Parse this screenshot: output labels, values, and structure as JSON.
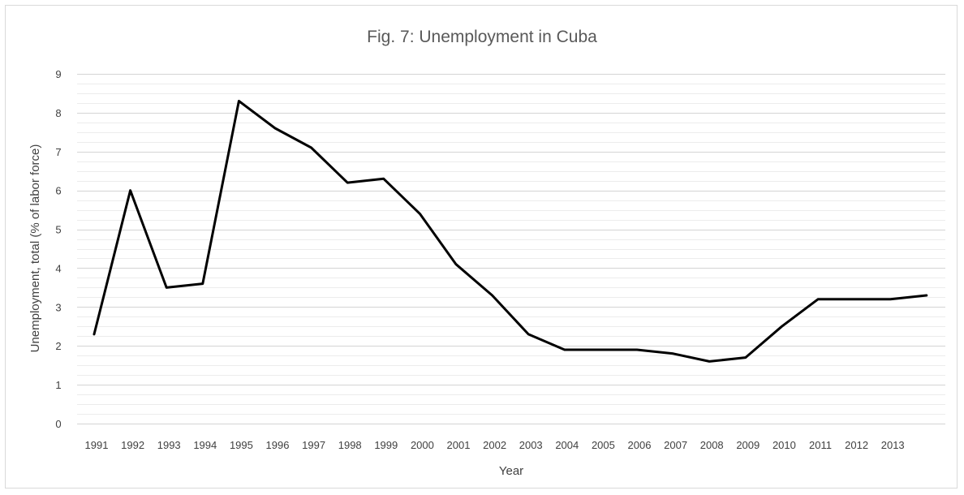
{
  "chart_data": {
    "type": "line",
    "title": "Fig. 7: Unemployment  in Cuba",
    "xlabel": "Year",
    "ylabel": "Unemployment, total (% of labor force)",
    "ylim": [
      0,
      9
    ],
    "yticks": [
      "0",
      "1",
      "2",
      "3",
      "4",
      "5",
      "6",
      "7",
      "8",
      "9"
    ],
    "x_tick_labels": [
      "1991",
      "1992",
      "1993",
      "1994",
      "1995",
      "1996",
      "1997",
      "1998",
      "1999",
      "2000",
      "2001",
      "2002",
      "2003",
      "2004",
      "2005",
      "2006",
      "2007",
      "2008",
      "2009",
      "2010",
      "2011",
      "2012",
      "2013"
    ],
    "grid": true,
    "legend": "none",
    "series": [
      {
        "color": "#000000",
        "x": [
          1991,
          1992,
          1993,
          1994,
          1995,
          1996,
          1997,
          1998,
          1999,
          2000,
          2001,
          2002,
          2003,
          2004,
          2005,
          2006,
          2007,
          2008,
          2009,
          2010,
          2011,
          2012,
          2013,
          2014
        ],
        "values": [
          2.3,
          6.0,
          3.5,
          3.6,
          8.3,
          7.6,
          7.1,
          6.2,
          6.3,
          5.4,
          4.1,
          3.3,
          2.3,
          1.9,
          1.9,
          1.9,
          1.8,
          1.6,
          1.7,
          2.5,
          3.2,
          3.2,
          3.2,
          3.3
        ]
      }
    ]
  }
}
